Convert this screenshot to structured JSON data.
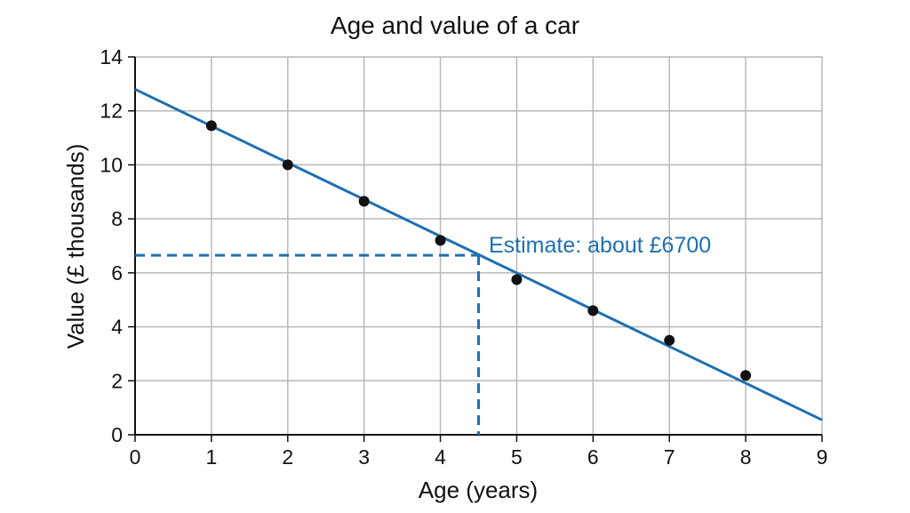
{
  "chart_data": {
    "type": "scatter",
    "title": "Age and value of a car",
    "xlabel": "Age (years)",
    "ylabel": "Value (£ thousands)",
    "xlim": [
      0,
      9
    ],
    "ylim": [
      0,
      14
    ],
    "x_ticks": [
      "0",
      "1",
      "2",
      "3",
      "4",
      "5",
      "6",
      "7",
      "8",
      "9"
    ],
    "y_ticks": [
      "0",
      "2",
      "4",
      "6",
      "8",
      "10",
      "12",
      "14"
    ],
    "grid": true,
    "points": [
      {
        "x": 1,
        "y": 11.45
      },
      {
        "x": 2,
        "y": 10.0
      },
      {
        "x": 3,
        "y": 8.65
      },
      {
        "x": 4,
        "y": 7.2
      },
      {
        "x": 5,
        "y": 5.75
      },
      {
        "x": 6,
        "y": 4.6
      },
      {
        "x": 7,
        "y": 3.5
      },
      {
        "x": 8,
        "y": 2.2
      }
    ],
    "trend_line": {
      "from": {
        "x": 0,
        "y": 12.8
      },
      "to": {
        "x": 9,
        "y": 0.55
      }
    },
    "estimate": {
      "x": 4.5,
      "y": 6.65,
      "label": "Estimate: about £6700"
    },
    "colors": {
      "line": "#1f6fb2",
      "points": "#111111",
      "grid": "#b8b8b8",
      "axis": "#111111"
    }
  }
}
